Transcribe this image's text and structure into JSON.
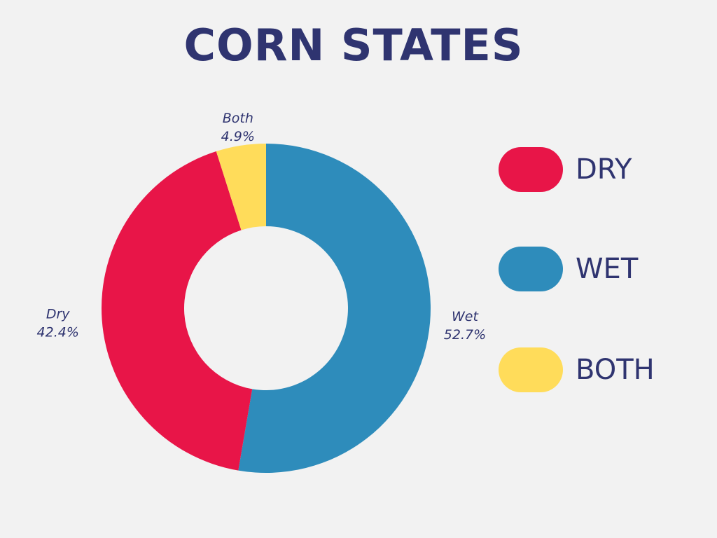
{
  "colors": {
    "text": "#2f3470",
    "background": "#f2f2f2"
  },
  "chart_data": {
    "type": "pie",
    "variant": "donut",
    "title": "CORN STATES",
    "slices": [
      {
        "key": "wet",
        "label": "Wet",
        "value": 52.7,
        "value_label": "52.7%",
        "color": "#2e8cbb"
      },
      {
        "key": "dry",
        "label": "Dry",
        "value": 42.4,
        "value_label": "42.4%",
        "color": "#e81548"
      },
      {
        "key": "both",
        "label": "Both",
        "value": 4.9,
        "value_label": "4.9%",
        "color": "#ffdc5a"
      }
    ],
    "legend": [
      {
        "label": "DRY",
        "color": "#e81548"
      },
      {
        "label": "WET",
        "color": "#2e8cbb"
      },
      {
        "label": "BOTH",
        "color": "#ffdc5a"
      }
    ],
    "legend_placement": "right"
  }
}
